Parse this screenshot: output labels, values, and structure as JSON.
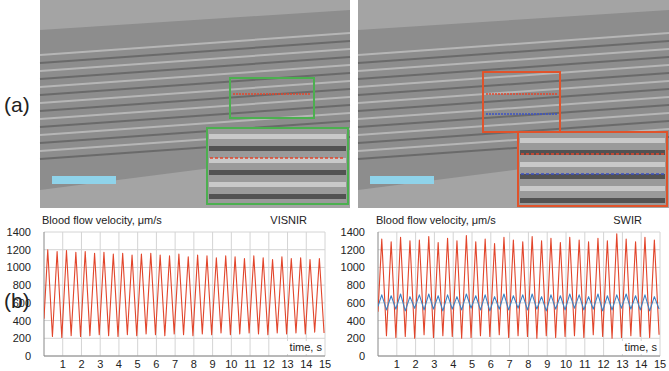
{
  "figure": {
    "panel_labels": [
      "(a)",
      "(b)"
    ]
  },
  "chart_data": [
    {
      "type": "line",
      "title": "Blood flow velocity, μm/s",
      "subtitle": "VISNIR",
      "x_label": "time, s",
      "x": [
        0,
        0.2,
        0.45,
        0.7,
        0.95,
        1.2,
        1.45,
        1.7,
        1.95,
        2.2,
        2.45,
        2.7,
        2.95,
        3.2,
        3.45,
        3.7,
        3.95,
        4.2,
        4.45,
        4.7,
        4.95,
        5.2,
        5.45,
        5.7,
        5.95,
        6.2,
        6.45,
        6.7,
        6.95,
        7.2,
        7.45,
        7.7,
        7.95,
        8.2,
        8.45,
        8.7,
        8.95,
        9.2,
        9.45,
        9.7,
        9.95,
        10.2,
        10.45,
        10.7,
        10.95,
        11.2,
        11.45,
        11.7,
        11.95,
        12.2,
        12.45,
        12.7,
        12.95,
        13.2,
        13.45,
        13.7,
        13.95,
        14.2,
        14.45,
        14.7,
        14.95
      ],
      "series": [
        {
          "color": "#e2452b",
          "values": [
            420,
            1200,
            220,
            1180,
            210,
            1190,
            230,
            1170,
            220,
            1180,
            230,
            1160,
            240,
            1170,
            230,
            1150,
            220,
            1160,
            240,
            1140,
            230,
            1150,
            250,
            1160,
            240,
            1140,
            230,
            1130,
            250,
            1150,
            240,
            1120,
            230,
            1140,
            250,
            1130,
            240,
            1110,
            260,
            1130,
            240,
            1120,
            250,
            1100,
            260,
            1130,
            250,
            1110,
            240,
            1090,
            260,
            1120,
            250,
            1100,
            260,
            1110,
            250,
            1090,
            270,
            1100,
            260
          ]
        }
      ],
      "xlim": [
        0,
        15
      ],
      "xticks": [
        1,
        2,
        3,
        4,
        5,
        6,
        7,
        8,
        9,
        10,
        11,
        12,
        13,
        14,
        15
      ],
      "ylim": [
        0,
        1400
      ],
      "yticks": [
        0,
        200,
        400,
        600,
        800,
        1000,
        1200,
        1400
      ],
      "grid": true
    },
    {
      "type": "line",
      "title": "Blood flow velocity, μm/s",
      "subtitle": "SWIR",
      "x_label": "time, s",
      "x": [
        0,
        0.2,
        0.45,
        0.7,
        0.95,
        1.2,
        1.45,
        1.7,
        1.95,
        2.2,
        2.45,
        2.7,
        2.95,
        3.2,
        3.45,
        3.7,
        3.95,
        4.2,
        4.45,
        4.7,
        4.95,
        5.2,
        5.45,
        5.7,
        5.95,
        6.2,
        6.45,
        6.7,
        6.95,
        7.2,
        7.45,
        7.7,
        7.95,
        8.2,
        8.45,
        8.7,
        8.95,
        9.2,
        9.45,
        9.7,
        9.95,
        10.2,
        10.45,
        10.7,
        10.95,
        11.2,
        11.45,
        11.7,
        11.95,
        12.2,
        12.45,
        12.7,
        12.95,
        13.2,
        13.45,
        13.7,
        13.95,
        14.2,
        14.45,
        14.7,
        14.95
      ],
      "series": [
        {
          "color": "#e2452b",
          "values": [
            500,
            1320,
            230,
            1290,
            210,
            1340,
            220,
            1300,
            200,
            1310,
            240,
            1350,
            210,
            1280,
            230,
            1330,
            220,
            1300,
            200,
            1360,
            210,
            1290,
            230,
            1320,
            220,
            1270,
            240,
            1340,
            210,
            1310,
            230,
            1290,
            220,
            1350,
            200,
            1300,
            230,
            1330,
            210,
            1280,
            220,
            1340,
            230,
            1310,
            210,
            1290,
            240,
            1330,
            220,
            1300,
            200,
            1380,
            210,
            1320,
            230,
            1290,
            220,
            1340,
            210,
            1310,
            240
          ]
        },
        {
          "color": "#3b82c4",
          "values": [
            560,
            690,
            520,
            680,
            530,
            700,
            510,
            670,
            540,
            690,
            520,
            700,
            530,
            680,
            510,
            690,
            530,
            670,
            520,
            700,
            540,
            680,
            520,
            690,
            510,
            670,
            530,
            700,
            520,
            680,
            540,
            690,
            520,
            700,
            530,
            670,
            510,
            690,
            530,
            680,
            520,
            700,
            540,
            690,
            520,
            670,
            530,
            700,
            510,
            680,
            520,
            690,
            540,
            700,
            530,
            680,
            520,
            690,
            510,
            670,
            530
          ]
        }
      ],
      "xlim": [
        0,
        15
      ],
      "xticks": [
        1,
        2,
        3,
        4,
        5,
        6,
        7,
        8,
        9,
        10,
        11,
        12,
        13,
        14,
        15
      ],
      "ylim": [
        0,
        1400
      ],
      "yticks": [
        0,
        200,
        400,
        600,
        800,
        1000,
        1200,
        1400
      ],
      "grid": true
    }
  ]
}
